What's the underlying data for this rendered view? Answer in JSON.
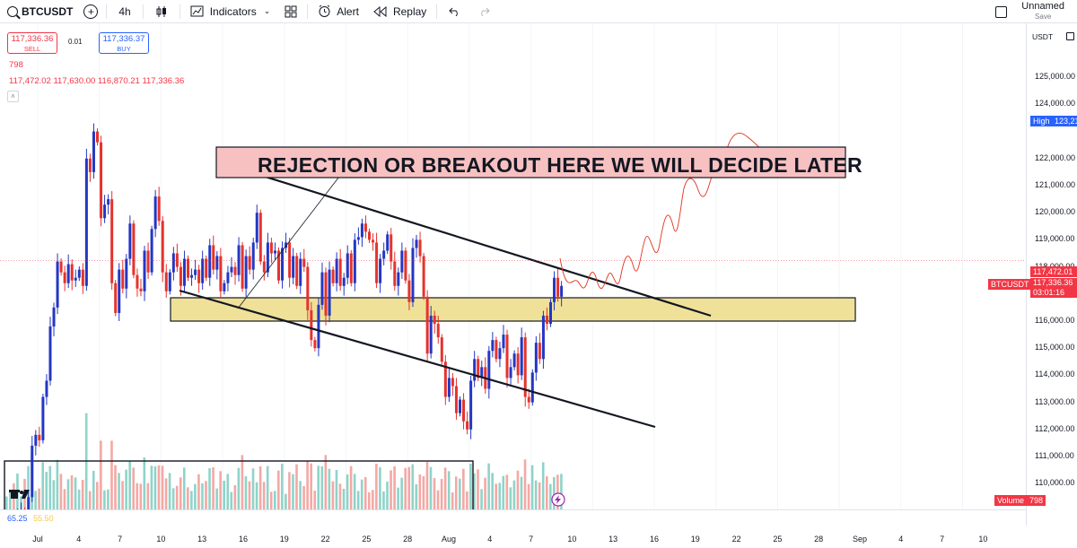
{
  "toolbar": {
    "symbol": "BTCUSDT",
    "interval": "4h",
    "indicators_label": "Indicators",
    "alert_label": "Alert",
    "replay_label": "Replay",
    "layout_name": "Unnamed",
    "save_label": "Save"
  },
  "legend": {
    "sell_price": "117,336.36",
    "sell_label": "SELL",
    "spread": "0.01",
    "buy_price": "117,336.37",
    "buy_label": "BUY",
    "volume": "798",
    "ohlc": "117,472.02  117,630.00  116,870.21  117,336.36"
  },
  "price_axis": {
    "unit": "USDT",
    "labels": [
      "125,000.00",
      "124,000.00",
      "122,000.00",
      "121,000.00",
      "120,000.00",
      "119,000.00",
      "118,000.00",
      "116,000.00",
      "115,000.00",
      "114,000.00",
      "113,000.00",
      "112,000.00",
      "111,000.00",
      "110,000.00"
    ],
    "high_tag": {
      "label": "High",
      "value": "123,218.00"
    },
    "price_tag": "117,472.01",
    "current": {
      "symbol": "BTCUSDT",
      "price": "117,336.36",
      "countdown": "03:01:16"
    },
    "volume_tag": {
      "label": "Volume",
      "value": "798"
    }
  },
  "time_axis": [
    "Jul",
    "4",
    "7",
    "10",
    "13",
    "16",
    "19",
    "22",
    "25",
    "28",
    "Aug",
    "4",
    "7",
    "10",
    "13",
    "16",
    "19",
    "22",
    "25",
    "28",
    "Sep",
    "4",
    "7",
    "10"
  ],
  "annotation": {
    "text": "REJECTION OR BREAKOUT HERE WE WILL DECIDE LATER"
  },
  "bottom_panel": {
    "value_a": "65.25",
    "value_b": "55.50"
  },
  "chart_data": {
    "type": "candlestick",
    "symbol": "BTCUSDT",
    "interval": "4h",
    "y_range": [
      109200,
      126000
    ],
    "last": 117336.36,
    "high": 123218,
    "levels": {
      "rejection_zone": [
        121900,
        123000
      ],
      "support_zone": [
        115600,
        116450
      ]
    },
    "closes": [
      108500,
      108600,
      108300,
      108900,
      109000,
      108100,
      109500,
      111400,
      111800,
      111600,
      113200,
      113800,
      115800,
      116500,
      118200,
      117800,
      117400,
      118100,
      117500,
      117600,
      117900,
      117300,
      122000,
      121500,
      123000,
      122600,
      119800,
      120300,
      120500,
      117400,
      116300,
      117900,
      117200,
      118300,
      119600,
      117700,
      117200,
      117100,
      118600,
      117800,
      119400,
      120600,
      119700,
      117800,
      117100,
      117800,
      118500,
      118000,
      117300,
      118300,
      117600,
      117700,
      117900,
      117400,
      118300,
      117600,
      118800,
      117900,
      118400,
      117100,
      117400,
      117800,
      118000,
      117700,
      118800,
      117200,
      118400,
      117900,
      118900,
      120000,
      118200,
      117800,
      118900,
      118500,
      118600,
      117500,
      118700,
      118900,
      117600,
      118400,
      117300,
      118300,
      118000,
      116400,
      115300,
      115000,
      116600,
      117800,
      116200,
      117900,
      117400,
      118300,
      117300,
      117600,
      118500,
      117400,
      119000,
      119100,
      119600,
      119300,
      119000,
      118900,
      117400,
      118300,
      118600,
      119200,
      118200,
      117300,
      117800,
      118600,
      117500,
      116700,
      118700,
      119000,
      118400,
      116900,
      114800,
      116200,
      115900,
      115400,
      114500,
      113200,
      113900,
      113600,
      112600,
      113100,
      112300,
      112000,
      113800,
      114600,
      113900,
      114300,
      113500,
      114900,
      115300,
      114600,
      115000,
      115500,
      113900,
      114300,
      114800,
      114000,
      115400,
      113200,
      113000,
      114100,
      115200,
      114600,
      116200,
      115900,
      116700,
      117600,
      116900,
      117300
    ]
  }
}
